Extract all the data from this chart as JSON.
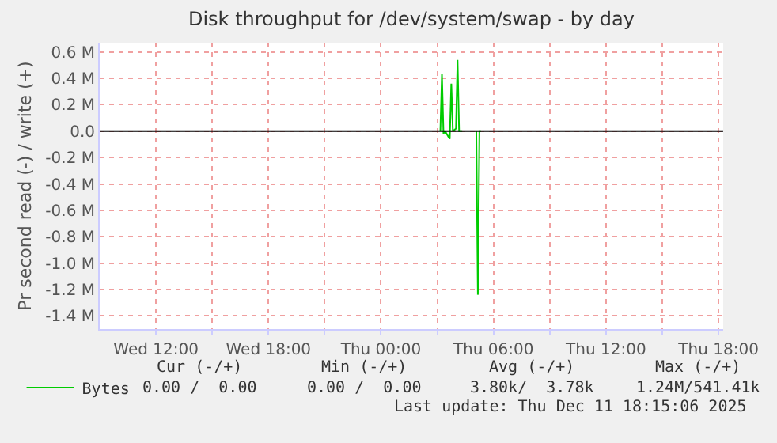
{
  "chart_data": {
    "type": "line",
    "title": "Disk throughput for /dev/system/swap - by day",
    "ylabel": "Pr second read (-) / write (+)",
    "x": [
      "2025-12-11T03:10",
      "2025-12-11T03:15",
      "2025-12-11T03:20",
      "2025-12-11T03:25",
      "2025-12-11T03:40",
      "2025-12-11T03:45",
      "2025-12-11T03:50",
      "2025-12-11T04:00",
      "2025-12-11T04:05",
      "2025-12-11T04:10",
      "2025-12-11T04:20",
      "2025-12-11T04:40",
      "2025-12-11T05:05",
      "2025-12-11T05:10",
      "2025-12-11T05:15",
      "2025-12-11T05:20"
    ],
    "series": [
      {
        "name": "Bytes",
        "color": "#00cc00",
        "values": [
          0,
          0.43,
          -0.02,
          0,
          -0.06,
          0.36,
          0,
          0.02,
          0.54,
          0,
          0,
          null,
          0,
          -1.24,
          0,
          0
        ]
      }
    ],
    "xlim": [
      "2025-12-10T09:00",
      "2025-12-11T18:15"
    ],
    "xticks": [
      {
        "value": "2025-12-10T12:00",
        "label": "Wed 12:00"
      },
      {
        "value": "2025-12-10T15:00",
        "label": null
      },
      {
        "value": "2025-12-10T18:00",
        "label": "Wed 18:00"
      },
      {
        "value": "2025-12-10T21:00",
        "label": null
      },
      {
        "value": "2025-12-11T00:00",
        "label": "Thu 00:00"
      },
      {
        "value": "2025-12-11T03:00",
        "label": null
      },
      {
        "value": "2025-12-11T06:00",
        "label": "Thu 06:00"
      },
      {
        "value": "2025-12-11T09:00",
        "label": null
      },
      {
        "value": "2025-12-11T12:00",
        "label": "Thu 12:00"
      },
      {
        "value": "2025-12-11T15:00",
        "label": null
      },
      {
        "value": "2025-12-11T18:00",
        "label": "Thu 18:00"
      }
    ],
    "ylim": [
      -1.5,
      0.67
    ],
    "yticks": [
      {
        "value": 0.6,
        "label": "0.6 M"
      },
      {
        "value": 0.4,
        "label": "0.4 M"
      },
      {
        "value": 0.2,
        "label": "0.2 M"
      },
      {
        "value": 0,
        "label": "0.0"
      },
      {
        "value": -0.2,
        "label": "-0.2 M"
      },
      {
        "value": -0.4,
        "label": "-0.4 M"
      },
      {
        "value": -0.6,
        "label": "-0.6 M"
      },
      {
        "value": -0.8,
        "label": "-0.8 M"
      },
      {
        "value": -1.0,
        "label": "-1.0 M"
      },
      {
        "value": -1.2,
        "label": "-1.2 M"
      },
      {
        "value": -1.4,
        "label": "-1.4 M"
      }
    ],
    "ref_lines": [
      {
        "axis": "y",
        "value": 0,
        "color": "#000000"
      }
    ],
    "grid": true,
    "legend": "bottom left",
    "annotations": [
      "Cur (-/+)",
      "Min (-/+)",
      "Avg (-/+)",
      "Max (-/+)",
      "0.00 /  0.00",
      "0.00 /  0.00",
      "3.80k/  3.78k",
      "1.24M/541.41k",
      "Last update: Thu Dec 11 18:15:06 2025"
    ]
  }
}
